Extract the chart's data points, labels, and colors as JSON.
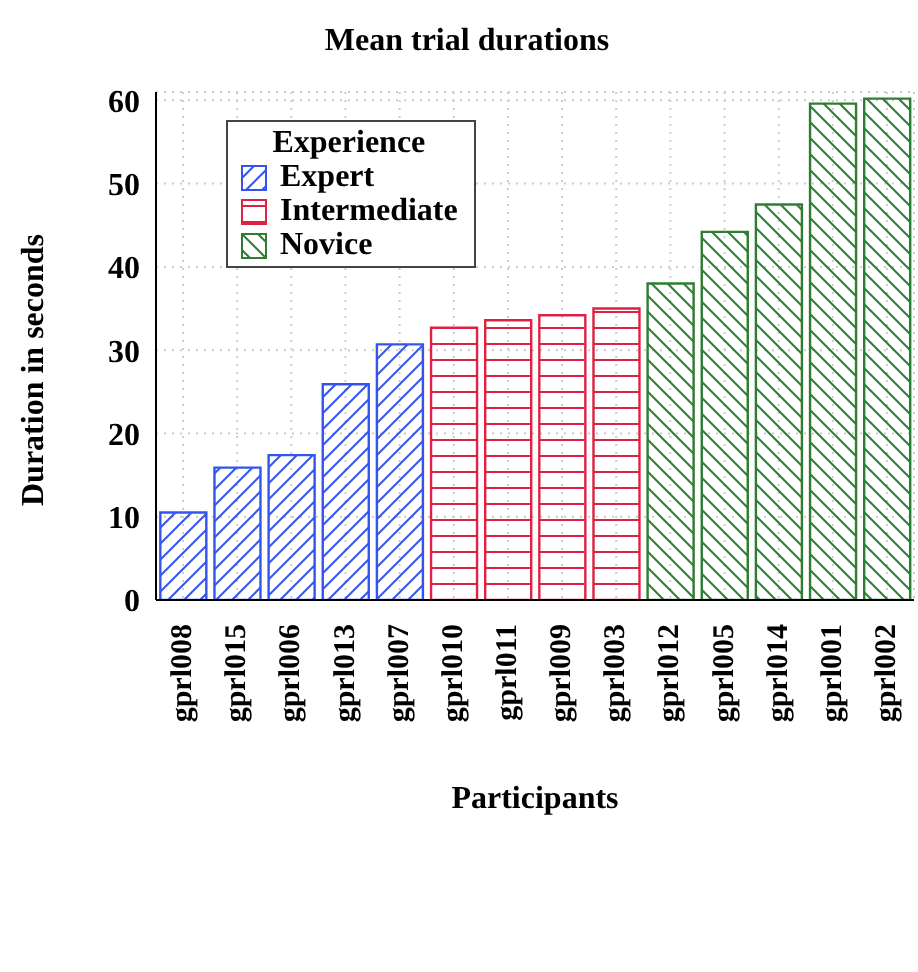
{
  "chart_data": {
    "type": "bar",
    "title": "Mean trial durations",
    "xlabel": "Participants",
    "ylabel": "Duration in seconds",
    "legend_title": "Experience",
    "categories": [
      "gprl008",
      "gprl015",
      "gprl006",
      "gprl013",
      "gprl007",
      "gprl010",
      "gprl011",
      "gprl009",
      "gprl003",
      "gprl012",
      "gprl005",
      "gprl014",
      "gprl001",
      "gprl002"
    ],
    "series": [
      {
        "name": "Expert",
        "color": "#3355ee",
        "values": [
          10.5,
          15.9,
          17.4,
          25.9,
          30.7,
          null,
          null,
          null,
          null,
          null,
          null,
          null,
          null,
          null
        ]
      },
      {
        "name": "Intermediate",
        "color": "#dd2244",
        "values": [
          null,
          null,
          null,
          null,
          null,
          32.7,
          33.6,
          34.2,
          35.0,
          null,
          null,
          null,
          null,
          null
        ]
      },
      {
        "name": "Novice",
        "color": "#2e7d32",
        "values": [
          null,
          null,
          null,
          null,
          null,
          null,
          null,
          null,
          null,
          38.0,
          44.2,
          47.5,
          59.6,
          60.2
        ]
      }
    ],
    "stacked": true,
    "ylim": [
      0,
      61
    ],
    "yticks": [
      0,
      10,
      20,
      30,
      40,
      50,
      60
    ],
    "grid": true,
    "legend": "top left"
  }
}
